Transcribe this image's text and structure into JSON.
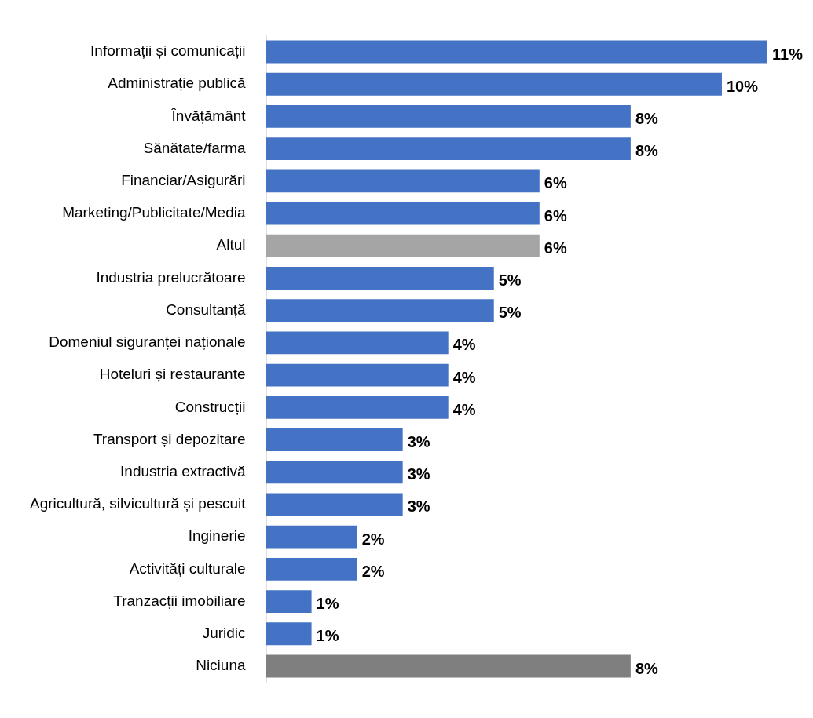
{
  "chart_data": {
    "type": "bar",
    "orientation": "horizontal",
    "tick_labels": "y",
    "grid": false,
    "legend": false,
    "xlim": [
      0,
      11
    ],
    "categories": [
      "Informații și comunicații",
      "Administrație publică",
      "Învățământ",
      "Sănătate/farma",
      "Financiar/Asigurări",
      "Marketing/Publicitate/Media",
      "Altul",
      "Industria prelucrătoare",
      "Consultanță",
      "Domeniul siguranței naționale",
      "Hoteluri și restaurante",
      "Construcții",
      "Transport și depozitare",
      "Industria extractivă",
      "Agricultură, silvicultură și pescuit",
      "Inginerie",
      "Activități culturale",
      "Tranzacții imobiliare",
      "Juridic",
      "Niciuna"
    ],
    "values": [
      11,
      10,
      8,
      8,
      6,
      6,
      6,
      5,
      5,
      4,
      4,
      4,
      3,
      3,
      3,
      2,
      2,
      1,
      1,
      8
    ],
    "value_labels": [
      "11%",
      "10%",
      "8%",
      "8%",
      "6%",
      "6%",
      "6%",
      "5%",
      "5%",
      "4%",
      "4%",
      "4%",
      "3%",
      "3%",
      "3%",
      "2%",
      "2%",
      "1%",
      "1%",
      "8%"
    ],
    "colors": [
      "#4472c4",
      "#4472c4",
      "#4472c4",
      "#4472c4",
      "#4472c4",
      "#4472c4",
      "#a5a5a5",
      "#4472c4",
      "#4472c4",
      "#4472c4",
      "#4472c4",
      "#4472c4",
      "#4472c4",
      "#4472c4",
      "#4472c4",
      "#4472c4",
      "#4472c4",
      "#4472c4",
      "#4472c4",
      "#7f7f7f"
    ]
  }
}
